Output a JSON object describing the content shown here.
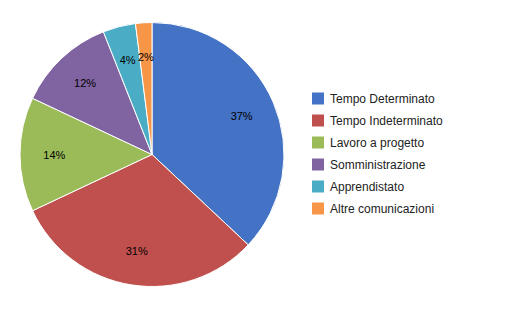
{
  "chart_data": {
    "type": "pie",
    "categories": [
      "Tempo Determinato",
      "Tempo Indeterminato",
      "Lavoro a progetto",
      "Somministrazione",
      "Apprendistato",
      "Altre comunicazioni"
    ],
    "values": [
      37,
      31,
      14,
      12,
      4,
      2
    ],
    "value_labels": [
      "37%",
      "31%",
      "14%",
      "12%",
      "4%",
      "2%"
    ],
    "colors": [
      "#4472C4",
      "#C0504D",
      "#9BBB59",
      "#8064A2",
      "#4BACC6",
      "#F79646"
    ],
    "data_labels": true,
    "legend": "right"
  }
}
